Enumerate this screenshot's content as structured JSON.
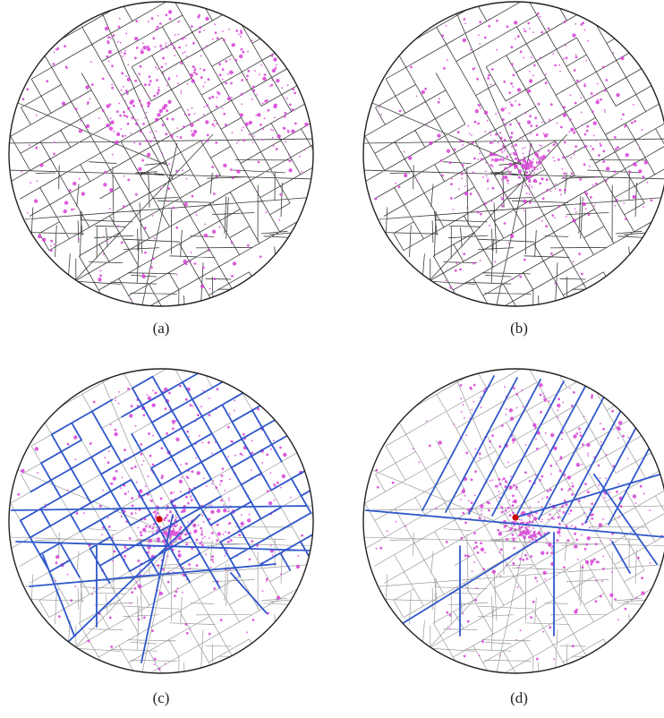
{
  "figure": {
    "panels": [
      {
        "id": "a",
        "caption": "(a)",
        "network": false,
        "center_marker": false,
        "cluster": "spread"
      },
      {
        "id": "b",
        "caption": "(b)",
        "network": false,
        "center_marker": false,
        "cluster": "center"
      },
      {
        "id": "c",
        "caption": "(c)",
        "network": "dense",
        "center_marker": true,
        "cluster": "center"
      },
      {
        "id": "d",
        "caption": "(d)",
        "network": "radial",
        "center_marker": true,
        "cluster": "center"
      }
    ]
  },
  "colors": {
    "street": "#3a3a3a",
    "street_faint": "#9a9a9a",
    "point": "#d63fd6",
    "network": "#2f57c9",
    "center": "#cc0000",
    "outline": "#222222"
  }
}
